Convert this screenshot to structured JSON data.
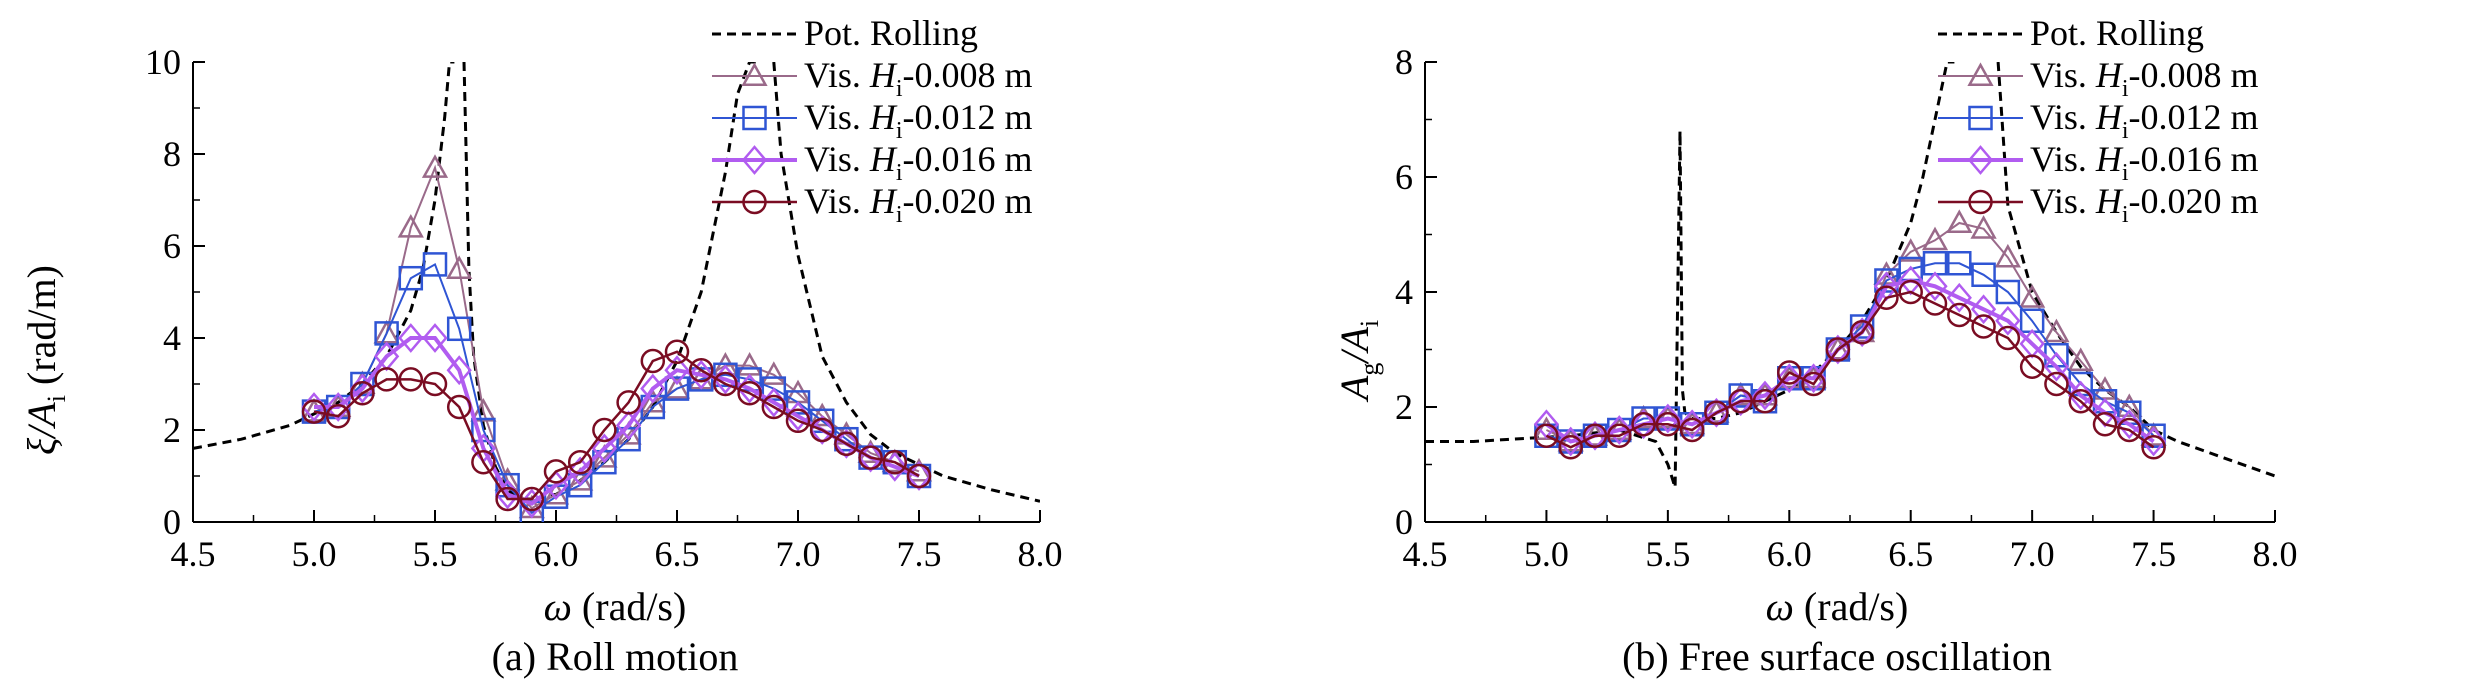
{
  "charts": [
    {
      "caption": "(a) Roll motion",
      "ylabel_main": "ξ/A",
      "ylabel_sub": "i",
      "ylabel_unit": " (rad/m)",
      "xlabel_sym": "ω",
      "xlabel_unit": " (rad/s)"
    },
    {
      "caption": "(b) Free surface oscillation",
      "ylabel_main": "A",
      "ylabel_sub": "g",
      "ylabel_mid": "/A",
      "ylabel_sub2": "i",
      "xlabel_sym": "ω",
      "xlabel_unit": " (rad/s)"
    }
  ],
  "legend": {
    "entries": [
      {
        "prefix": "Pot. Rolling",
        "var": "",
        "sub": "",
        "suffix": ""
      },
      {
        "prefix": "Vis. ",
        "var": "H",
        "sub": "i",
        "suffix": "-0.008 m"
      },
      {
        "prefix": "Vis. ",
        "var": "H",
        "sub": "i",
        "suffix": "-0.012 m"
      },
      {
        "prefix": "Vis. ",
        "var": "H",
        "sub": "i",
        "suffix": "-0.016 m"
      },
      {
        "prefix": "Vis. ",
        "var": "H",
        "sub": "i",
        "suffix": "-0.020 m"
      }
    ]
  },
  "colors": {
    "pot": "#000000",
    "h008": "#9a6a8a",
    "h012": "#2f55d4",
    "h016": "#b15cf0",
    "h020": "#7a0c22"
  },
  "chart_data": [
    {
      "type": "line",
      "xlabel": "ω (rad/s)",
      "ylabel": "ξ/Ai (rad/m)",
      "xlim": [
        4.5,
        8.0
      ],
      "ylim": [
        0,
        10
      ],
      "xticks": [
        "4.5",
        "5.0",
        "5.5",
        "6.0",
        "6.5",
        "7.0",
        "7.5",
        "8.0"
      ],
      "yticks": [
        "0",
        "2",
        "4",
        "6",
        "8",
        "10"
      ],
      "potential": {
        "x": [
          4.5,
          4.7,
          4.9,
          5.1,
          5.2,
          5.3,
          5.4,
          5.45,
          5.5,
          5.54,
          5.56,
          5.58,
          5.62,
          5.64,
          5.66,
          5.7,
          5.75,
          5.8,
          5.85,
          5.9,
          5.95,
          6.0,
          6.1,
          6.2,
          6.3,
          6.4,
          6.5,
          6.6,
          6.7,
          6.75,
          6.8,
          6.83,
          6.9,
          6.93,
          7.0,
          7.1,
          7.2,
          7.3,
          7.4,
          7.6,
          7.8,
          8.0
        ],
        "y": [
          1.6,
          1.8,
          2.1,
          2.6,
          3.0,
          3.6,
          4.6,
          5.5,
          7.0,
          8.8,
          10.0,
          10.0,
          10.0,
          5.5,
          3.6,
          2.1,
          1.2,
          0.7,
          0.5,
          0.5,
          0.55,
          0.6,
          0.9,
          1.3,
          1.8,
          2.5,
          3.5,
          5.0,
          7.6,
          9.3,
          10.0,
          10.0,
          10.0,
          8.0,
          5.8,
          3.6,
          2.6,
          1.9,
          1.5,
          1.0,
          0.7,
          0.45
        ]
      },
      "potential_breaks": [
        [
          5.58,
          5.62
        ],
        [
          6.83,
          6.9
        ]
      ],
      "series": [
        {
          "name": "Vis. Hi-0.008 m",
          "marker": "triangle",
          "x": [
            5.0,
            5.1,
            5.2,
            5.3,
            5.4,
            5.5,
            5.6,
            5.7,
            5.8,
            5.9,
            6.0,
            6.1,
            6.2,
            6.3,
            6.4,
            6.5,
            6.6,
            6.7,
            6.8,
            6.9,
            7.0,
            7.1,
            7.2,
            7.3,
            7.4,
            7.5
          ],
          "y": [
            2.4,
            2.5,
            3.0,
            4.1,
            6.4,
            7.7,
            5.5,
            2.4,
            0.9,
            0.3,
            0.6,
            0.9,
            1.4,
            1.9,
            2.6,
            2.9,
            3.1,
            3.4,
            3.4,
            3.2,
            2.8,
            2.3,
            1.9,
            1.5,
            1.3,
            1.1
          ]
        },
        {
          "name": "Vis. Hi-0.012 m",
          "marker": "square",
          "x": [
            5.0,
            5.1,
            5.2,
            5.3,
            5.4,
            5.5,
            5.6,
            5.7,
            5.8,
            5.9,
            6.0,
            6.1,
            6.2,
            6.3,
            6.4,
            6.5,
            6.6,
            6.7,
            6.8,
            6.9,
            7.0,
            7.1,
            7.2,
            7.3,
            7.4,
            7.5
          ],
          "y": [
            2.4,
            2.5,
            3.0,
            4.1,
            5.3,
            5.6,
            4.2,
            2.0,
            0.8,
            0.2,
            0.55,
            0.8,
            1.3,
            1.8,
            2.5,
            2.9,
            3.1,
            3.2,
            3.1,
            2.9,
            2.6,
            2.2,
            1.8,
            1.4,
            1.3,
            1.0
          ]
        },
        {
          "name": "Vis. Hi-0.016 m",
          "marker": "diamond",
          "x": [
            5.0,
            5.1,
            5.2,
            5.3,
            5.4,
            5.5,
            5.6,
            5.7,
            5.8,
            5.9,
            6.0,
            6.1,
            6.2,
            6.3,
            6.4,
            6.5,
            6.6,
            6.7,
            6.8,
            6.9,
            7.0,
            7.1,
            7.2,
            7.3,
            7.4,
            7.5
          ],
          "y": [
            2.5,
            2.5,
            2.9,
            3.6,
            4.0,
            4.0,
            3.3,
            1.6,
            0.6,
            0.4,
            0.8,
            1.1,
            1.6,
            2.1,
            2.9,
            3.3,
            3.2,
            3.1,
            2.9,
            2.6,
            2.3,
            2.0,
            1.7,
            1.4,
            1.2,
            1.0
          ]
        },
        {
          "name": "Vis. Hi-0.020 m",
          "marker": "circle",
          "x": [
            5.0,
            5.1,
            5.2,
            5.3,
            5.4,
            5.5,
            5.6,
            5.7,
            5.8,
            5.9,
            6.0,
            6.1,
            6.2,
            6.3,
            6.4,
            6.5,
            6.6,
            6.7,
            6.8,
            6.9,
            7.0,
            7.1,
            7.2,
            7.3,
            7.4,
            7.5
          ],
          "y": [
            2.4,
            2.3,
            2.8,
            3.1,
            3.1,
            3.0,
            2.5,
            1.3,
            0.5,
            0.5,
            1.1,
            1.3,
            2.0,
            2.6,
            3.5,
            3.7,
            3.3,
            3.0,
            2.8,
            2.5,
            2.2,
            2.0,
            1.7,
            1.4,
            1.3,
            1.0
          ]
        }
      ]
    },
    {
      "type": "line",
      "xlabel": "ω (rad/s)",
      "ylabel": "Ag/Ai",
      "xlim": [
        4.5,
        8.0
      ],
      "ylim": [
        0,
        8
      ],
      "xticks": [
        "4.5",
        "5.0",
        "5.5",
        "6.0",
        "6.5",
        "7.0",
        "7.5",
        "8.0"
      ],
      "yticks": [
        "0",
        "2",
        "4",
        "6",
        "8"
      ],
      "potential": {
        "x": [
          4.5,
          4.7,
          4.9,
          5.1,
          5.3,
          5.45,
          5.5,
          5.53,
          5.55,
          5.56,
          5.57,
          5.6,
          5.7,
          5.8,
          5.9,
          6.0,
          6.1,
          6.2,
          6.3,
          6.4,
          6.5,
          6.55,
          6.6,
          6.65,
          6.68,
          6.8,
          6.86,
          6.9,
          7.0,
          7.1,
          7.2,
          7.3,
          7.4,
          7.5,
          7.6,
          7.8,
          8.0
        ],
        "y": [
          1.4,
          1.4,
          1.45,
          1.5,
          1.6,
          1.4,
          1.0,
          0.6,
          6.8,
          2.3,
          1.9,
          1.8,
          1.8,
          1.9,
          2.1,
          2.3,
          2.6,
          3.0,
          3.5,
          4.2,
          5.2,
          6.0,
          7.0,
          8.0,
          8.0,
          8.0,
          8.0,
          5.5,
          4.0,
          3.3,
          2.7,
          2.3,
          2.0,
          1.6,
          1.4,
          1.1,
          0.8
        ]
      },
      "potential_breaks": [
        [
          6.68,
          6.86
        ]
      ],
      "series": [
        {
          "name": "Vis. Hi-0.008 m",
          "marker": "triangle",
          "x": [
            5.0,
            5.1,
            5.2,
            5.3,
            5.4,
            5.5,
            5.6,
            5.7,
            5.8,
            5.9,
            6.0,
            6.1,
            6.2,
            6.3,
            6.4,
            6.5,
            6.6,
            6.7,
            6.8,
            6.9,
            7.0,
            7.1,
            7.2,
            7.3,
            7.4,
            7.5
          ],
          "y": [
            1.6,
            1.4,
            1.5,
            1.6,
            1.8,
            1.8,
            1.7,
            1.9,
            2.2,
            2.2,
            2.5,
            2.5,
            3.0,
            3.3,
            4.3,
            4.7,
            4.9,
            5.2,
            5.1,
            4.6,
            3.9,
            3.3,
            2.8,
            2.3,
            2.0,
            1.5
          ]
        },
        {
          "name": "Vis. Hi-0.012 m",
          "marker": "square",
          "x": [
            5.0,
            5.1,
            5.2,
            5.3,
            5.4,
            5.5,
            5.6,
            5.7,
            5.8,
            5.9,
            6.0,
            6.1,
            6.2,
            6.3,
            6.4,
            6.5,
            6.6,
            6.7,
            6.8,
            6.9,
            7.0,
            7.1,
            7.2,
            7.3,
            7.4,
            7.5
          ],
          "y": [
            1.5,
            1.4,
            1.5,
            1.6,
            1.8,
            1.8,
            1.7,
            1.9,
            2.2,
            2.1,
            2.5,
            2.5,
            3.0,
            3.4,
            4.2,
            4.4,
            4.5,
            4.5,
            4.3,
            4.0,
            3.5,
            2.9,
            2.4,
            2.1,
            1.9,
            1.5
          ]
        },
        {
          "name": "Vis. Hi-0.016 m",
          "marker": "diamond",
          "x": [
            5.0,
            5.1,
            5.2,
            5.3,
            5.4,
            5.5,
            5.6,
            5.7,
            5.8,
            5.9,
            6.0,
            6.1,
            6.2,
            6.3,
            6.4,
            6.5,
            6.6,
            6.7,
            6.8,
            6.9,
            7.0,
            7.1,
            7.2,
            7.3,
            7.4,
            7.5
          ],
          "y": [
            1.7,
            1.4,
            1.5,
            1.6,
            1.7,
            1.8,
            1.7,
            1.9,
            2.1,
            2.2,
            2.5,
            2.5,
            3.0,
            3.3,
            4.1,
            4.2,
            4.1,
            3.9,
            3.7,
            3.5,
            3.1,
            2.7,
            2.2,
            1.9,
            1.7,
            1.4
          ]
        },
        {
          "name": "Vis. Hi-0.020 m",
          "marker": "circle",
          "x": [
            5.0,
            5.1,
            5.2,
            5.3,
            5.4,
            5.5,
            5.6,
            5.7,
            5.8,
            5.9,
            6.0,
            6.1,
            6.2,
            6.3,
            6.4,
            6.5,
            6.6,
            6.7,
            6.8,
            6.9,
            7.0,
            7.1,
            7.2,
            7.3,
            7.4,
            7.5
          ],
          "y": [
            1.5,
            1.3,
            1.5,
            1.5,
            1.7,
            1.7,
            1.6,
            1.9,
            2.1,
            2.1,
            2.6,
            2.4,
            3.0,
            3.3,
            3.9,
            4.0,
            3.8,
            3.6,
            3.4,
            3.2,
            2.7,
            2.4,
            2.1,
            1.7,
            1.6,
            1.3
          ]
        }
      ]
    }
  ]
}
